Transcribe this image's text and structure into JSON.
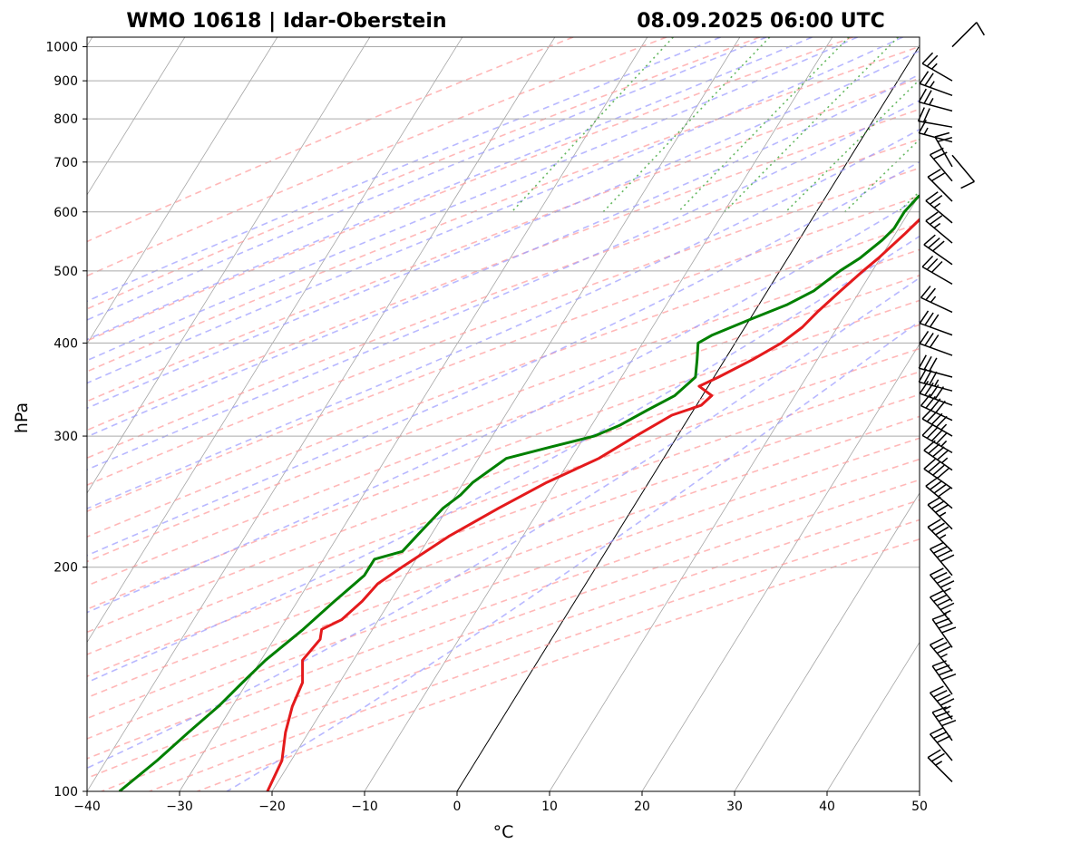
{
  "title_left": "WMO 10618 | Idar-Oberstein",
  "title_right": "08.09.2025 06:00 UTC",
  "chart_data": {
    "type": "skew-t log-p",
    "xlabel": "°C",
    "ylabel": "hPa",
    "xlim": [
      -40,
      50
    ],
    "ylim": [
      1030,
      100
    ],
    "y_scale": "log",
    "x_ticks": [
      -40,
      -30,
      -20,
      -10,
      0,
      10,
      20,
      30,
      40,
      50
    ],
    "x_tick_labels": [
      "−40",
      "−30",
      "−20",
      "−10",
      "0",
      "10",
      "20",
      "30",
      "40",
      "50"
    ],
    "y_ticks": [
      1000,
      900,
      800,
      700,
      600,
      500,
      400,
      300,
      200,
      100
    ],
    "y_tick_labels": [
      "1000",
      "900",
      "800",
      "700",
      "600",
      "500",
      "400",
      "300",
      "200",
      "100"
    ],
    "grid": true,
    "colors": {
      "temperature": "#e41a1c",
      "dewpoint": "#008000",
      "dry_adiabats": "#ff9a9a",
      "moist_adiabats": "#9a9aff",
      "mixing_ratio": "#33a02c",
      "isotherms": "#888888",
      "zero_isotherm": "#000000"
    },
    "series": [
      {
        "name": "Temperature",
        "points": [
          [
            969,
            14.0
          ],
          [
            960,
            16.5
          ],
          [
            950,
            20.0
          ],
          [
            930,
            22.0
          ],
          [
            910,
            23.0
          ],
          [
            880,
            22.0
          ],
          [
            850,
            20.5
          ],
          [
            820,
            19.0
          ],
          [
            800,
            18.2
          ],
          [
            760,
            16.5
          ],
          [
            720,
            14.7
          ],
          [
            700,
            13.8
          ],
          [
            680,
            13.6
          ],
          [
            650,
            12.8
          ],
          [
            600,
            12.0
          ],
          [
            560,
            11.0
          ],
          [
            520,
            9.8
          ],
          [
            500,
            9.0
          ],
          [
            470,
            7.9
          ],
          [
            440,
            6.8
          ],
          [
            420,
            6.2
          ],
          [
            400,
            5.0
          ],
          [
            380,
            3.0
          ],
          [
            360,
            0.5
          ],
          [
            350,
            -1.0
          ],
          [
            340,
            1.0
          ],
          [
            330,
            0.5
          ],
          [
            320,
            -2.0
          ],
          [
            300,
            -4.5
          ],
          [
            280,
            -7.0
          ],
          [
            260,
            -11.0
          ],
          [
            240,
            -14.5
          ],
          [
            220,
            -18.0
          ],
          [
            200,
            -21.0
          ],
          [
            190,
            -22.5
          ],
          [
            180,
            -23.0
          ],
          [
            170,
            -24.0
          ],
          [
            165,
            -25.5
          ],
          [
            160,
            -25.0
          ],
          [
            150,
            -25.5
          ],
          [
            140,
            -24.0
          ],
          [
            130,
            -23.5
          ],
          [
            120,
            -22.5
          ],
          [
            110,
            -21.0
          ],
          [
            100,
            -20.5
          ]
        ]
      },
      {
        "name": "Dewpoint",
        "points": [
          [
            969,
            11.5
          ],
          [
            940,
            17.0
          ],
          [
            920,
            16.0
          ],
          [
            900,
            15.5
          ],
          [
            880,
            18.5
          ],
          [
            860,
            18.0
          ],
          [
            840,
            16.0
          ],
          [
            820,
            15.5
          ],
          [
            800,
            15.0
          ],
          [
            780,
            15.5
          ],
          [
            760,
            15.0
          ],
          [
            740,
            15.5
          ],
          [
            720,
            14.0
          ],
          [
            700,
            12.8
          ],
          [
            690,
            11.0
          ],
          [
            680,
            13.5
          ],
          [
            660,
            13.5
          ],
          [
            650,
            12.0
          ],
          [
            630,
            10.0
          ],
          [
            600,
            9.5
          ],
          [
            570,
            9.5
          ],
          [
            550,
            9.0
          ],
          [
            520,
            7.8
          ],
          [
            500,
            6.5
          ],
          [
            470,
            5.0
          ],
          [
            450,
            3.0
          ],
          [
            430,
            0.0
          ],
          [
            410,
            -3.0
          ],
          [
            400,
            -4.0
          ],
          [
            380,
            -3.0
          ],
          [
            360,
            -2.0
          ],
          [
            340,
            -3.0
          ],
          [
            325,
            -5.0
          ],
          [
            310,
            -7.0
          ],
          [
            300,
            -9.0
          ],
          [
            290,
            -13.0
          ],
          [
            280,
            -17.0
          ],
          [
            260,
            -19.0
          ],
          [
            250,
            -19.5
          ],
          [
            240,
            -20.5
          ],
          [
            230,
            -21.0
          ],
          [
            220,
            -21.5
          ],
          [
            210,
            -22.0
          ],
          [
            205,
            -24.5
          ],
          [
            195,
            -24.5
          ],
          [
            180,
            -26.0
          ],
          [
            165,
            -27.5
          ],
          [
            150,
            -29.5
          ],
          [
            140,
            -30.5
          ],
          [
            130,
            -31.5
          ],
          [
            120,
            -33.0
          ],
          [
            110,
            -34.5
          ],
          [
            100,
            -36.5
          ]
        ]
      }
    ],
    "wind_barbs": [
      [
        1000,
        45,
        10
      ],
      [
        900,
        300,
        25
      ],
      [
        860,
        290,
        25
      ],
      [
        820,
        285,
        25
      ],
      [
        780,
        280,
        20
      ],
      [
        745,
        285,
        15
      ],
      [
        715,
        140,
        10
      ],
      [
        690,
        330,
        20
      ],
      [
        660,
        320,
        20
      ],
      [
        620,
        315,
        20
      ],
      [
        580,
        310,
        25
      ],
      [
        545,
        310,
        25
      ],
      [
        510,
        305,
        30
      ],
      [
        480,
        300,
        30
      ],
      [
        440,
        295,
        25
      ],
      [
        410,
        290,
        30
      ],
      [
        385,
        290,
        30
      ],
      [
        360,
        285,
        30
      ],
      [
        345,
        285,
        35
      ],
      [
        330,
        290,
        40
      ],
      [
        315,
        295,
        40
      ],
      [
        300,
        300,
        45
      ],
      [
        285,
        300,
        45
      ],
      [
        270,
        305,
        45
      ],
      [
        255,
        305,
        40
      ],
      [
        240,
        310,
        40
      ],
      [
        225,
        315,
        35
      ],
      [
        210,
        315,
        35
      ],
      [
        195,
        320,
        40
      ],
      [
        180,
        320,
        45
      ],
      [
        168,
        320,
        45
      ],
      [
        156,
        325,
        40
      ],
      [
        145,
        320,
        35
      ],
      [
        135,
        325,
        40
      ],
      [
        125,
        320,
        45
      ],
      [
        117,
        325,
        40
      ],
      [
        110,
        320,
        30
      ],
      [
        103,
        315,
        25
      ]
    ]
  }
}
